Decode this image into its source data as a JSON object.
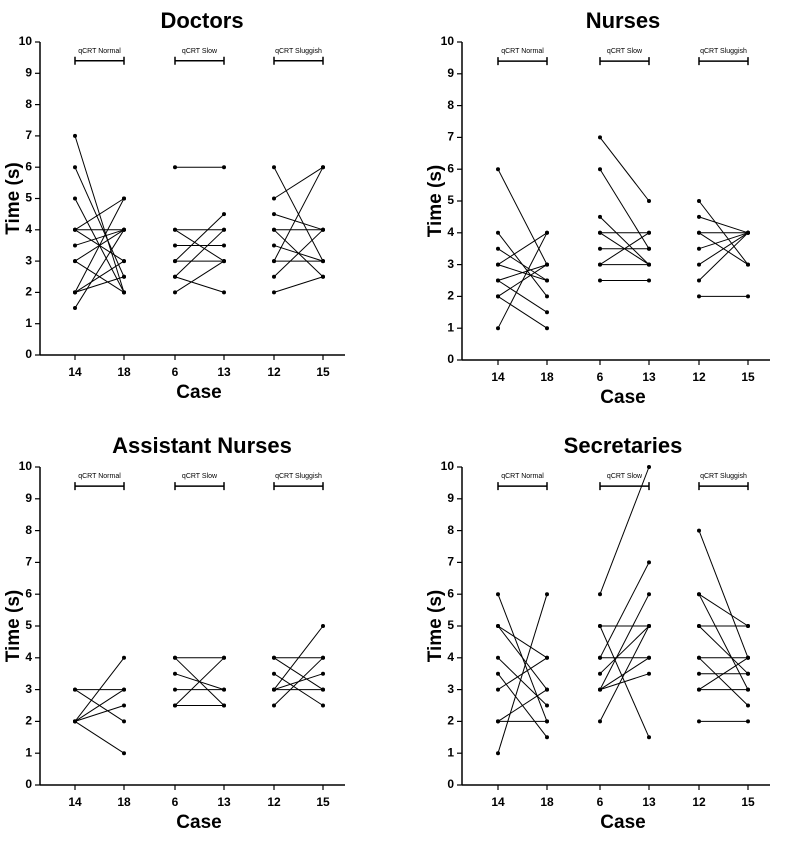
{
  "figure": {
    "ylabel": "Time (s)",
    "xlabel": "Case",
    "yticks": [
      "0",
      "1",
      "2",
      "3",
      "4",
      "5",
      "6",
      "7",
      "8",
      "9",
      "10"
    ],
    "case_labels": [
      "14",
      "18",
      "6",
      "13",
      "12",
      "15"
    ],
    "group_labels": [
      "qCRT Normal",
      "qCRT Slow",
      "qCRT Sluggish"
    ]
  },
  "chart_data": [
    {
      "type": "line",
      "title": "Doctors",
      "xlabel": "Case",
      "ylabel": "Time (s)",
      "ylim": [
        0,
        10
      ],
      "groups": [
        {
          "label": "qCRT Normal",
          "cases": [
            "14",
            "18"
          ],
          "pairs": [
            [
              7,
              2
            ],
            [
              6,
              2.5
            ],
            [
              5,
              2
            ],
            [
              4,
              5
            ],
            [
              4,
              4
            ],
            [
              4,
              3
            ],
            [
              3.5,
              4
            ],
            [
              3,
              2
            ],
            [
              3,
              4
            ],
            [
              2,
              5
            ],
            [
              2,
              3
            ],
            [
              2,
              2.5
            ],
            [
              1.5,
              4
            ]
          ]
        },
        {
          "label": "qCRT Slow",
          "cases": [
            "6",
            "13"
          ],
          "pairs": [
            [
              6,
              6
            ],
            [
              4,
              4
            ],
            [
              4,
              3
            ],
            [
              3.5,
              3.5
            ],
            [
              3,
              4.5
            ],
            [
              3,
              3
            ],
            [
              2.5,
              4
            ],
            [
              2.5,
              2
            ],
            [
              2,
              3
            ]
          ]
        },
        {
          "label": "qCRT Sluggish",
          "cases": [
            "12",
            "15"
          ],
          "pairs": [
            [
              6,
              3
            ],
            [
              5,
              6
            ],
            [
              4.5,
              4
            ],
            [
              4,
              4
            ],
            [
              4,
              2.5
            ],
            [
              3.5,
              3
            ],
            [
              3,
              6
            ],
            [
              3,
              3
            ],
            [
              2.5,
              4
            ],
            [
              2,
              2.5
            ]
          ]
        }
      ]
    },
    {
      "type": "line",
      "title": "Nurses",
      "xlabel": "Case",
      "ylabel": "Time (s)",
      "ylim": [
        0,
        10
      ],
      "groups": [
        {
          "label": "qCRT Normal",
          "cases": [
            "14",
            "18"
          ],
          "pairs": [
            [
              6,
              3
            ],
            [
              4,
              2
            ],
            [
              3.5,
              2.5
            ],
            [
              3,
              4
            ],
            [
              3,
              2.5
            ],
            [
              2.5,
              3
            ],
            [
              2.5,
              1.5
            ],
            [
              2,
              3
            ],
            [
              2,
              1
            ],
            [
              1,
              4
            ]
          ]
        },
        {
          "label": "qCRT Slow",
          "cases": [
            "6",
            "13"
          ],
          "pairs": [
            [
              7,
              5
            ],
            [
              6,
              3.5
            ],
            [
              4.5,
              3
            ],
            [
              4,
              4
            ],
            [
              4,
              3
            ],
            [
              3.5,
              3.5
            ],
            [
              3,
              4
            ],
            [
              3,
              3
            ],
            [
              2.5,
              2.5
            ]
          ]
        },
        {
          "label": "qCRT Sluggish",
          "cases": [
            "12",
            "15"
          ],
          "pairs": [
            [
              5,
              3
            ],
            [
              4.5,
              4
            ],
            [
              4,
              4
            ],
            [
              4,
              3
            ],
            [
              3.5,
              4
            ],
            [
              3,
              4
            ],
            [
              2.5,
              4
            ],
            [
              2,
              2
            ]
          ]
        }
      ]
    },
    {
      "type": "line",
      "title": "Assistant Nurses",
      "xlabel": "Case",
      "ylabel": "Time (s)",
      "ylim": [
        0,
        10
      ],
      "groups": [
        {
          "label": "qCRT Normal",
          "cases": [
            "14",
            "18"
          ],
          "pairs": [
            [
              3,
              3
            ],
            [
              3,
              2
            ],
            [
              2,
              4
            ],
            [
              2,
              3
            ],
            [
              2,
              2.5
            ],
            [
              2,
              1
            ]
          ]
        },
        {
          "label": "qCRT Slow",
          "cases": [
            "6",
            "13"
          ],
          "pairs": [
            [
              4,
              4
            ],
            [
              4,
              2.5
            ],
            [
              3.5,
              3
            ],
            [
              3,
              3
            ],
            [
              2.5,
              4
            ],
            [
              2.5,
              2.5
            ]
          ]
        },
        {
          "label": "qCRT Sluggish",
          "cases": [
            "12",
            "15"
          ],
          "pairs": [
            [
              4,
              3
            ],
            [
              4,
              4
            ],
            [
              3.5,
              2.5
            ],
            [
              3,
              5
            ],
            [
              3,
              3.5
            ],
            [
              3,
              3
            ],
            [
              2.5,
              4
            ]
          ]
        }
      ]
    },
    {
      "type": "line",
      "title": "Secretaries",
      "xlabel": "Case",
      "ylabel": "Time (s)",
      "ylim": [
        0,
        10
      ],
      "groups": [
        {
          "label": "qCRT Normal",
          "cases": [
            "14",
            "18"
          ],
          "pairs": [
            [
              6,
              2
            ],
            [
              5,
              3
            ],
            [
              5,
              4
            ],
            [
              4,
              2.5
            ],
            [
              3.5,
              1.5
            ],
            [
              3,
              4
            ],
            [
              2,
              3
            ],
            [
              2,
              2
            ],
            [
              1,
              6
            ]
          ]
        },
        {
          "label": "qCRT Slow",
          "cases": [
            "6",
            "13"
          ],
          "pairs": [
            [
              6,
              10
            ],
            [
              5,
              5
            ],
            [
              5,
              1.5
            ],
            [
              4,
              7
            ],
            [
              4,
              4
            ],
            [
              3.5,
              5
            ],
            [
              3,
              6
            ],
            [
              3,
              4
            ],
            [
              3,
              3.5
            ],
            [
              2,
              5
            ]
          ]
        },
        {
          "label": "qCRT Sluggish",
          "cases": [
            "12",
            "15"
          ],
          "pairs": [
            [
              8,
              4
            ],
            [
              6,
              5
            ],
            [
              6,
              3
            ],
            [
              5,
              3.5
            ],
            [
              5,
              5
            ],
            [
              4,
              4
            ],
            [
              4,
              2.5
            ],
            [
              3.5,
              3.5
            ],
            [
              3,
              4
            ],
            [
              3,
              3
            ],
            [
              2,
              2
            ]
          ]
        }
      ]
    }
  ]
}
